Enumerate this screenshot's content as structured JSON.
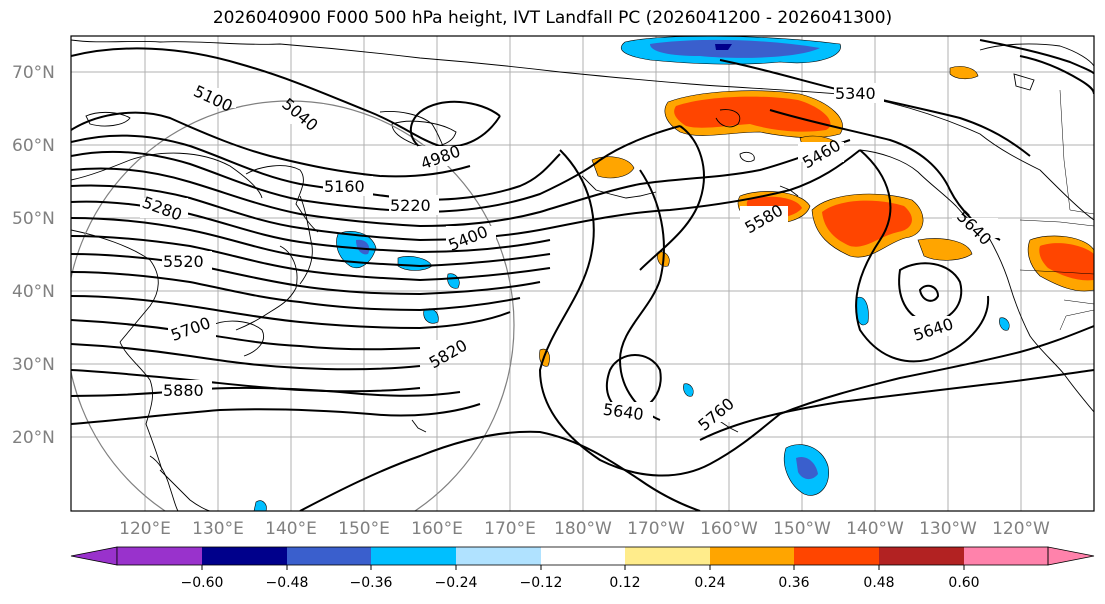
{
  "title": "2026040900 F000 500 hPa height, IVT Landfall PC (2026041200 - 2026041300)",
  "lat_labels": [
    "70°N",
    "60°N",
    "50°N",
    "40°N",
    "30°N",
    "20°N"
  ],
  "lon_labels": [
    "120°E",
    "130°E",
    "140°E",
    "150°E",
    "160°E",
    "170°E",
    "180°W",
    "170°W",
    "160°W",
    "150°W",
    "140°W",
    "130°W",
    "120°W"
  ],
  "contour_labels": [
    "5100",
    "5040",
    "4980",
    "5160",
    "5220",
    "5280",
    "5400",
    "5520",
    "5460",
    "5340",
    "5580",
    "5640",
    "5700",
    "5820",
    "5880",
    "5640",
    "5760",
    "5640"
  ],
  "colorbar": {
    "ticks": [
      "−0.60",
      "−0.48",
      "−0.36",
      "−0.24",
      "−0.12",
      "0.12",
      "0.24",
      "0.36",
      "0.48",
      "0.60"
    ],
    "colors": [
      "#9932cc",
      "#00008b",
      "#3a5fcd",
      "#00bfff",
      "#b0e2ff",
      "#ffffff",
      "#ffec8b",
      "#ffa500",
      "#ff4500",
      "#b22222",
      "#ff82ab"
    ]
  }
}
